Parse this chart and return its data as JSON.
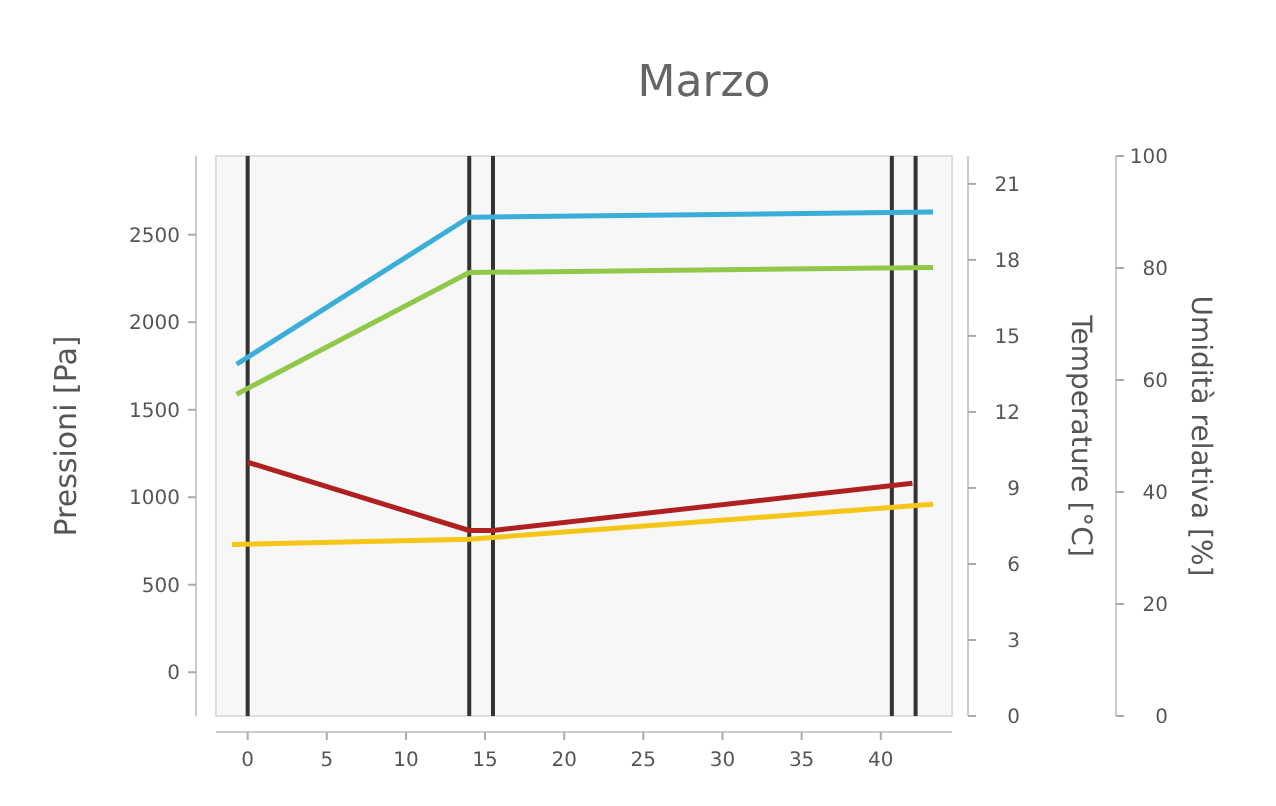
{
  "chart_data": {
    "type": "line",
    "title": "Marzo",
    "ylabel": "Pressioni [Pa]",
    "y2label": "Temperature [°C]",
    "y3label": "Umidità relativa [%]",
    "xlim": [
      -2,
      44.5
    ],
    "xticks": [
      0,
      5,
      10,
      15,
      20,
      25,
      30,
      35,
      40
    ],
    "ylim": [
      -250,
      2950
    ],
    "yticks": [
      0,
      500,
      1000,
      1500,
      2000,
      2500
    ],
    "y2lim": [
      0,
      22.1
    ],
    "y2ticks": [
      0,
      3,
      6,
      9,
      12,
      15,
      18,
      21
    ],
    "y3lim": [
      0,
      100
    ],
    "y3ticks": [
      0,
      20,
      40,
      60,
      80,
      100
    ],
    "series": [
      {
        "color": "#3aaed8",
        "x": [
          -0.7,
          14,
          43.3
        ],
        "values": [
          1760,
          2600,
          2630
        ]
      },
      {
        "color": "#92c84a",
        "axis": "y2",
        "x": [
          -0.7,
          14,
          43.3
        ],
        "values": [
          12.7,
          17.5,
          17.7
        ]
      },
      {
        "color": "#b02020",
        "x": [
          0,
          14,
          15.5,
          42
        ],
        "values": [
          1200,
          810,
          810,
          1080
        ]
      },
      {
        "color": "#f5c518",
        "x": [
          -1,
          14,
          43.3
        ],
        "values": [
          730,
          760,
          960
        ]
      }
    ],
    "ref_lines": [
      {
        "axis": "x",
        "value": 0,
        "color": "#333333"
      },
      {
        "axis": "x",
        "value": 14,
        "color": "#333333"
      },
      {
        "axis": "x",
        "value": 15.5,
        "color": "#333333"
      },
      {
        "axis": "x",
        "value": 40.7,
        "color": "#333333"
      },
      {
        "axis": "x",
        "value": 42.2,
        "color": "#333333"
      }
    ],
    "grid": false
  }
}
